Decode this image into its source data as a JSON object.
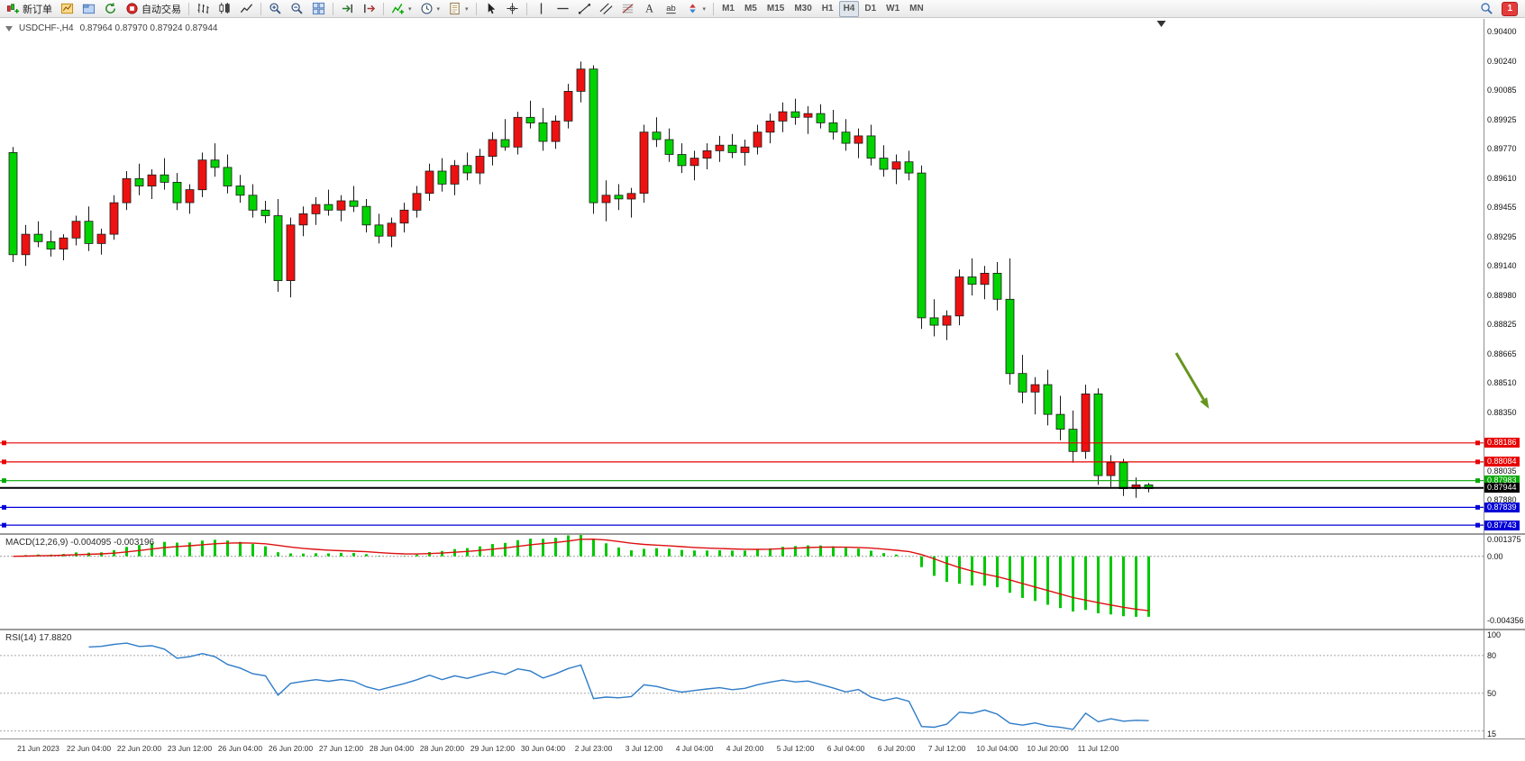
{
  "toolbar": {
    "items": [
      {
        "name": "new-order",
        "icon": "new-order-icon",
        "label": "新订单"
      },
      {
        "name": "charts-page",
        "icon": "chart-page-icon"
      },
      {
        "name": "profiles",
        "icon": "profiles-icon"
      },
      {
        "name": "refresh",
        "icon": "refresh-icon"
      },
      {
        "name": "auto-trading",
        "icon": "autotrading-icon",
        "label": "自动交易"
      },
      {
        "type": "sep"
      },
      {
        "name": "bar-chart-mode",
        "icon": "bar-chart-icon"
      },
      {
        "name": "candle-chart-mode",
        "icon": "candle-chart-icon"
      },
      {
        "name": "line-chart-mode",
        "icon": "line-chart-icon"
      },
      {
        "type": "sep"
      },
      {
        "name": "zoom-in",
        "icon": "zoom-in-icon"
      },
      {
        "name": "zoom-out",
        "icon": "zoom-out-icon"
      },
      {
        "name": "tile-windows",
        "icon": "tile-windows-icon"
      },
      {
        "type": "sep"
      },
      {
        "name": "auto-scroll",
        "icon": "auto-scroll-icon"
      },
      {
        "name": "chart-shift",
        "icon": "chart-shift-icon"
      },
      {
        "type": "sep"
      },
      {
        "name": "indicators",
        "icon": "indicators-icon",
        "dropdown": true
      },
      {
        "name": "periods",
        "icon": "clock-icon",
        "dropdown": true
      },
      {
        "name": "templates",
        "icon": "template-icon",
        "dropdown": true
      },
      {
        "type": "sep"
      },
      {
        "name": "cursor-tool",
        "icon": "cursor-icon"
      },
      {
        "name": "crosshair-tool",
        "icon": "crosshair-icon"
      },
      {
        "type": "sep"
      },
      {
        "name": "vertical-line-tool",
        "icon": "vline-icon"
      },
      {
        "name": "horizontal-line-tool",
        "icon": "hline-icon"
      },
      {
        "name": "trendline-tool",
        "icon": "trendline-icon"
      },
      {
        "name": "channel-tool",
        "icon": "channel-icon"
      },
      {
        "name": "fibonacci-tool",
        "icon": "fibonacci-icon"
      },
      {
        "name": "text-tool",
        "icon": "text-icon"
      },
      {
        "name": "label-tool",
        "icon": "label-icon"
      },
      {
        "name": "arrows-tool",
        "icon": "arrows-icon",
        "dropdown": true
      },
      {
        "type": "sep"
      },
      {
        "name": "tf-m1",
        "label": "M1"
      },
      {
        "name": "tf-m5",
        "label": "M5"
      },
      {
        "name": "tf-m15",
        "label": "M15"
      },
      {
        "name": "tf-m30",
        "label": "M30"
      },
      {
        "name": "tf-h1",
        "label": "H1"
      },
      {
        "name": "tf-h4",
        "label": "H4",
        "active": true
      },
      {
        "name": "tf-d1",
        "label": "D1"
      },
      {
        "name": "tf-w1",
        "label": "W1"
      },
      {
        "name": "tf-mn",
        "label": "MN"
      }
    ],
    "right_items": [
      {
        "name": "search",
        "icon": "search-icon"
      },
      {
        "name": "notifications",
        "badge": "1"
      }
    ]
  },
  "chart": {
    "symbol_period": "USDCHF-,H4",
    "ohlc": "0.87964 0.87970 0.87924 0.87944"
  },
  "chart_data": [
    {
      "type": "candlestick",
      "symbol": "USDCHF-",
      "timeframe": "H4",
      "title": "USDCHF-,H4",
      "ohlc_current": {
        "open": 0.87964,
        "high": 0.8797,
        "low": 0.87924,
        "close": 0.87944
      },
      "price_unit": 0.0001,
      "bull_color": "#ee1111",
      "bear_color": "#00d300",
      "wick_color": "#1a1a1a",
      "ylim": [
        0.877,
        0.9047
      ],
      "y_ticks": [
        0.904,
        0.9024,
        0.90085,
        0.89925,
        0.8977,
        0.8961,
        0.89455,
        0.89295,
        0.8914,
        0.8898,
        0.88825,
        0.88665,
        0.8851,
        0.8835,
        0.88035,
        0.8788
      ],
      "candles": [
        [
          8975,
          8978,
          8916,
          8920
        ],
        [
          8920,
          8936,
          8914,
          8931
        ],
        [
          8931,
          8938,
          8924,
          8927
        ],
        [
          8927,
          8933,
          8919,
          8923
        ],
        [
          8923,
          8931,
          8917,
          8929
        ],
        [
          8929,
          8941,
          8925,
          8938
        ],
        [
          8938,
          8946,
          8922,
          8926
        ],
        [
          8926,
          8934,
          8920,
          8931
        ],
        [
          8931,
          8952,
          8928,
          8948
        ],
        [
          8948,
          8965,
          8944,
          8961
        ],
        [
          8961,
          8969,
          8952,
          8957
        ],
        [
          8957,
          8966,
          8950,
          8963
        ],
        [
          8963,
          8972,
          8955,
          8959
        ],
        [
          8959,
          8964,
          8944,
          8948
        ],
        [
          8948,
          8958,
          8942,
          8955
        ],
        [
          8955,
          8975,
          8951,
          8971
        ],
        [
          8971,
          8980,
          8962,
          8967
        ],
        [
          8967,
          8974,
          8953,
          8957
        ],
        [
          8957,
          8963,
          8948,
          8952
        ],
        [
          8952,
          8958,
          8940,
          8944
        ],
        [
          8944,
          8949,
          8937,
          8941
        ],
        [
          8941,
          8950,
          8900,
          8906
        ],
        [
          8906,
          8940,
          8897,
          8936
        ],
        [
          8936,
          8946,
          8930,
          8942
        ],
        [
          8942,
          8951,
          8936,
          8947
        ],
        [
          8947,
          8955,
          8941,
          8944
        ],
        [
          8944,
          8952,
          8938,
          8949
        ],
        [
          8949,
          8957,
          8943,
          8946
        ],
        [
          8946,
          8950,
          8932,
          8936
        ],
        [
          8936,
          8942,
          8926,
          8930
        ],
        [
          8930,
          8940,
          8924,
          8937
        ],
        [
          8937,
          8948,
          8932,
          8944
        ],
        [
          8944,
          8957,
          8940,
          8953
        ],
        [
          8953,
          8969,
          8949,
          8965
        ],
        [
          8965,
          8972,
          8954,
          8958
        ],
        [
          8958,
          8971,
          8952,
          8968
        ],
        [
          8968,
          8975,
          8960,
          8964
        ],
        [
          8964,
          8977,
          8958,
          8973
        ],
        [
          8973,
          8986,
          8968,
          8982
        ],
        [
          8982,
          8993,
          8976,
          8978
        ],
        [
          8978,
          8997,
          8974,
          8994
        ],
        [
          8994,
          9003,
          8988,
          8991
        ],
        [
          8991,
          8999,
          8976,
          8981
        ],
        [
          8981,
          8995,
          8977,
          8992
        ],
        [
          8992,
          9012,
          8988,
          9008
        ],
        [
          9008,
          9024,
          9002,
          9020
        ],
        [
          9020,
          9022,
          8942,
          8948
        ],
        [
          8948,
          8960,
          8938,
          8952
        ],
        [
          8952,
          8958,
          8944,
          8950
        ],
        [
          8950,
          8956,
          8940,
          8953
        ],
        [
          8953,
          8990,
          8948,
          8986
        ],
        [
          8986,
          8994,
          8978,
          8982
        ],
        [
          8982,
          8988,
          8970,
          8974
        ],
        [
          8974,
          8980,
          8964,
          8968
        ],
        [
          8968,
          8976,
          8960,
          8972
        ],
        [
          8972,
          8980,
          8966,
          8976
        ],
        [
          8976,
          8984,
          8970,
          8979
        ],
        [
          8979,
          8985,
          8972,
          8975
        ],
        [
          8975,
          8982,
          8968,
          8978
        ],
        [
          8978,
          8990,
          8974,
          8986
        ],
        [
          8986,
          8996,
          8980,
          8992
        ],
        [
          8992,
          9002,
          8986,
          8997
        ],
        [
          8997,
          9004,
          8990,
          8994
        ],
        [
          8994,
          9000,
          8985,
          8996
        ],
        [
          8996,
          9001,
          8988,
          8991
        ],
        [
          8991,
          8998,
          8982,
          8986
        ],
        [
          8986,
          8993,
          8976,
          8980
        ],
        [
          8980,
          8988,
          8972,
          8984
        ],
        [
          8984,
          8990,
          8968,
          8972
        ],
        [
          8972,
          8979,
          8962,
          8966
        ],
        [
          8966,
          8974,
          8958,
          8970
        ],
        [
          8970,
          8976,
          8960,
          8964
        ],
        [
          8964,
          8968,
          8880,
          8886
        ],
        [
          8886,
          8896,
          8876,
          8882
        ],
        [
          8882,
          8890,
          8874,
          8887
        ],
        [
          8887,
          8912,
          8882,
          8908
        ],
        [
          8908,
          8918,
          8898,
          8904
        ],
        [
          8904,
          8914,
          8896,
          8910
        ],
        [
          8910,
          8916,
          8890,
          8896
        ],
        [
          8896,
          8918,
          8850,
          8856
        ],
        [
          8856,
          8866,
          8840,
          8846
        ],
        [
          8846,
          8854,
          8834,
          8850
        ],
        [
          8850,
          8858,
          8828,
          8834
        ],
        [
          8834,
          8844,
          8820,
          8826
        ],
        [
          8826,
          8836,
          8808,
          8814
        ],
        [
          8814,
          8850,
          8810,
          8845
        ],
        [
          8845,
          8848,
          8796,
          8801
        ],
        [
          8801,
          8812,
          8795,
          8808
        ],
        [
          8808,
          8810,
          8790,
          8794
        ],
        [
          8794,
          8800,
          8789,
          8796
        ],
        [
          8796,
          8797,
          8792,
          8794
        ]
      ],
      "levels": [
        {
          "value": 0.88186,
          "color": "#e80000",
          "type": "line"
        },
        {
          "value": 0.88084,
          "color": "#e80000",
          "type": "line"
        },
        {
          "value": 0.87983,
          "color": "#00a800",
          "type": "line"
        },
        {
          "value": 0.87944,
          "color": "#000000",
          "type": "current-price"
        },
        {
          "value": 0.87839,
          "color": "#0000d8",
          "type": "line"
        },
        {
          "value": 0.87743,
          "color": "#0000d8",
          "type": "line"
        }
      ],
      "annotation_arrow": {
        "color": "#66951f",
        "x1_bar": 92.5,
        "y1_price": 0.8867,
        "x2_bar": 95.1,
        "y2_price": 0.8837
      },
      "shift_marker_bar": 91,
      "x_tick_start": 2,
      "x_tick_every": 4,
      "x_tick_labels": [
        "21 Jun 2023",
        "22 Jun 04:00",
        "22 Jun 20:00",
        "23 Jun 12:00",
        "26 Jun 04:00",
        "26 Jun 20:00",
        "27 Jun 12:00",
        "28 Jun 04:00",
        "28 Jun 20:00",
        "29 Jun 12:00",
        "30 Jun 04:00",
        "2 Jul 23:00",
        "3 Jul 12:00",
        "4 Jul 04:00",
        "4 Jul 20:00",
        "5 Jul 12:00",
        "6 Jul 04:00",
        "6 Jul 20:00",
        "7 Jul 12:00",
        "10 Jul 04:00",
        "10 Jul 20:00",
        "11 Jul 12:00"
      ]
    },
    {
      "type": "macd",
      "label": "MACD(12,26,9) -0.004095 -0.003196",
      "params": [
        12,
        26,
        9
      ],
      "main_value": -0.004095,
      "signal_value": -0.003196,
      "ylim": [
        -0.0049,
        0.00145
      ],
      "y_ticks": [
        0.001375,
        0,
        -0.004356
      ],
      "y_tick_labels": [
        "0.001375",
        "0.00",
        "-0.004356"
      ],
      "histogram_color": "#00c800",
      "signal_color": "#dd1111"
    },
    {
      "type": "rsi",
      "label": "RSI(14) 17.8820",
      "period": 14,
      "value": 17.882,
      "ylim": [
        14,
        100
      ],
      "levels": [
        80,
        50,
        20
      ],
      "y_ticks": [
        100,
        80,
        50,
        15
      ],
      "y_tick_labels": [
        "100",
        "80",
        "50",
        "15"
      ],
      "line_color": "#2e7cc8"
    }
  ]
}
